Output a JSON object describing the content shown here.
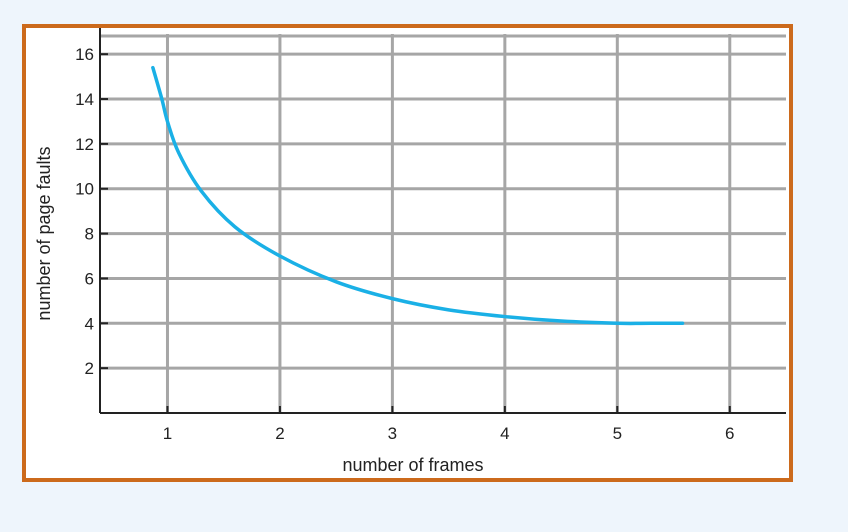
{
  "chart_data": {
    "type": "line",
    "title": "",
    "xlabel": "number of frames",
    "ylabel": "number of page faults",
    "xlim": [
      0.4,
      6.5
    ],
    "ylim": [
      0,
      16.9
    ],
    "xticks": [
      1,
      2,
      3,
      4,
      5,
      6
    ],
    "yticks": [
      2,
      4,
      6,
      8,
      10,
      12,
      14,
      16
    ],
    "grid": true,
    "colors": {
      "line": "#1ab0e6",
      "grid": "#a6a6a6",
      "axis": "#222222",
      "frame": "#cc6a1c"
    },
    "series": [
      {
        "x": [
          0.87,
          0.95,
          1.0,
          1.1,
          1.3,
          1.6,
          2.0,
          2.5,
          3.0,
          3.5,
          4.0,
          4.5,
          5.0,
          5.3,
          5.58
        ],
        "y": [
          15.4,
          14.0,
          13.0,
          11.6,
          9.9,
          8.3,
          7.0,
          5.85,
          5.1,
          4.6,
          4.3,
          4.1,
          4.0,
          4.0,
          4.0
        ]
      }
    ]
  }
}
